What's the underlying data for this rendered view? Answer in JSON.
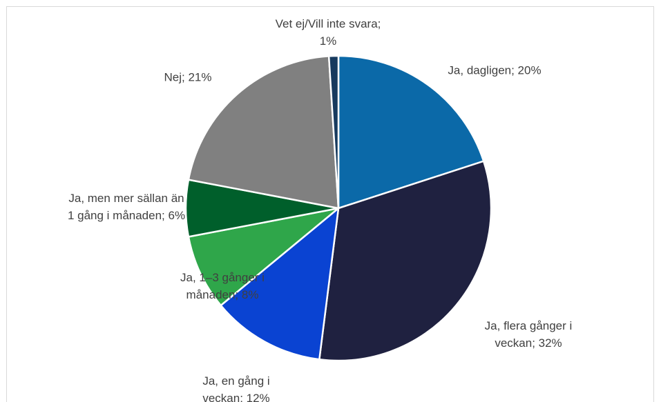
{
  "chart_data": {
    "type": "pie",
    "values": [
      20,
      32,
      12,
      8,
      6,
      21,
      1
    ],
    "value_labels": [
      "Ja, dagligen; 20%",
      "Ja, flera gånger i veckan; 32%",
      "Ja, en gång i veckan; 12%",
      "Ja, 1–3 gånger i månaden; 8%",
      "Ja, men mer sällan än 1 gång i månaden; 6%",
      "Nej; 21%",
      "Vet ej/Vill inte svara; 1%"
    ],
    "colors": [
      "#0b69a8",
      "#1f2140",
      "#0a43d2",
      "#2fa64a",
      "#005f2b",
      "#808080",
      "#173a5e"
    ]
  }
}
